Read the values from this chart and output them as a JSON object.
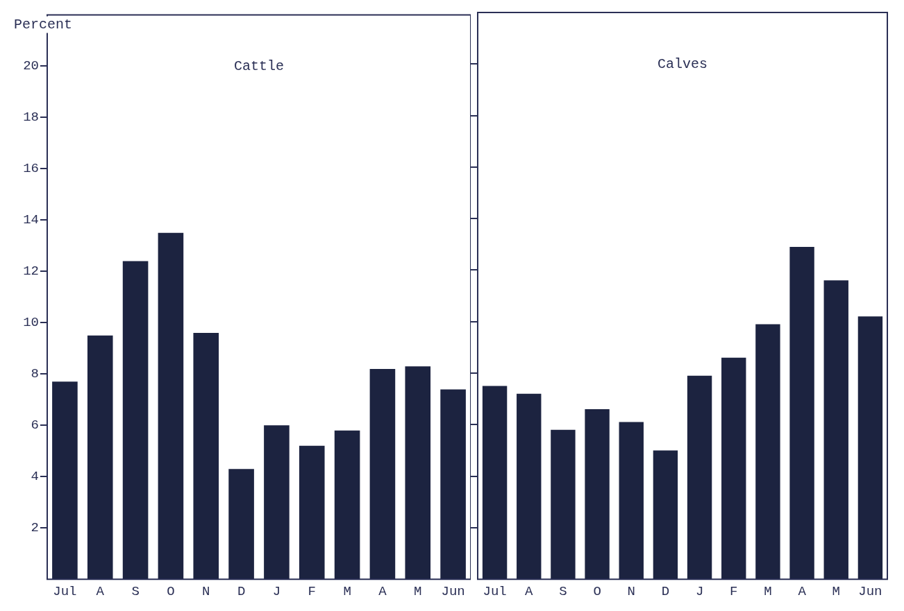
{
  "chart_data": [
    {
      "type": "bar",
      "title": "Cattle",
      "ylabel": "Percent",
      "categories": [
        "Jul",
        "A",
        "S",
        "O",
        "N",
        "D",
        "J",
        "F",
        "M",
        "A",
        "M",
        "Jun"
      ],
      "values": [
        7.7,
        9.5,
        12.4,
        13.5,
        9.6,
        4.3,
        6.0,
        5.2,
        5.8,
        8.2,
        8.3,
        7.4
      ],
      "color": "#1c2340",
      "ylim": [
        0,
        22
      ],
      "yticks": [
        2,
        4,
        6,
        8,
        10,
        12,
        14,
        16,
        18,
        20
      ],
      "grid": false,
      "legend": false
    },
    {
      "type": "bar",
      "title": "Calves",
      "categories": [
        "Jul",
        "A",
        "S",
        "O",
        "N",
        "D",
        "J",
        "F",
        "M",
        "A",
        "M",
        "Jun"
      ],
      "values": [
        7.5,
        7.2,
        5.8,
        6.6,
        6.1,
        5.0,
        7.9,
        8.6,
        9.9,
        12.9,
        11.6,
        10.2
      ],
      "color": "#1c2340",
      "ylim": [
        0,
        22
      ],
      "yticks": [
        {
          "value": 2,
          "label": null
        },
        {
          "value": 4,
          "label": null
        },
        {
          "value": 6,
          "label": null
        },
        {
          "value": 8,
          "label": null
        },
        {
          "value": 10,
          "label": null
        },
        {
          "value": 12,
          "label": null
        },
        {
          "value": 14,
          "label": null
        },
        {
          "value": 16,
          "label": null
        },
        {
          "value": 18,
          "label": null
        },
        {
          "value": 20,
          "label": null
        }
      ],
      "grid": false,
      "legend": false,
      "tick_labels": "x"
    }
  ]
}
